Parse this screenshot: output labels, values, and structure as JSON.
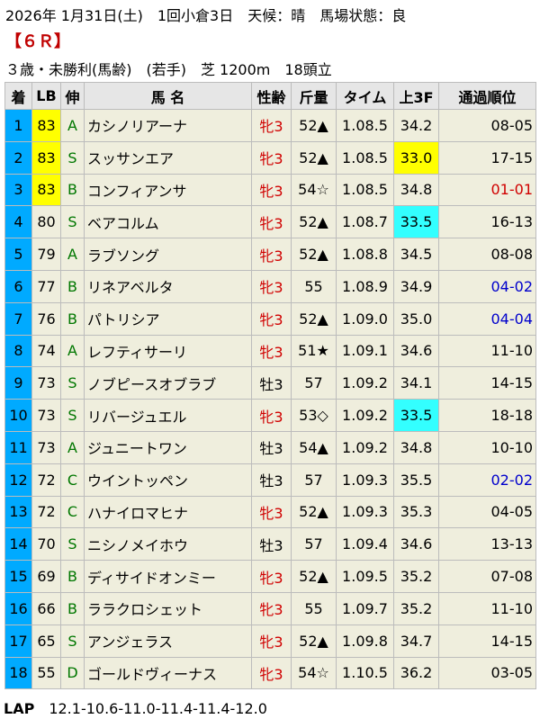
{
  "header": {
    "date_line": "2026年 1月31日(土)　1回小倉3日　天候：晴　馬場状態：良",
    "race_no": "【６Ｒ】",
    "conditions": "３歳・未勝利(馬齢)　(若手)　芝 1200m　18頭立"
  },
  "columns": [
    "着",
    "LB",
    "伸",
    "馬 名",
    "性齢",
    "斤量",
    "タイム",
    "上3F",
    "通過順位"
  ],
  "colors": {
    "gate_1": "#ffffff",
    "gate_2": "#000000",
    "gate_3": "#ff0000",
    "gate_4": "#0000ff",
    "gate_5": "#ffff00",
    "gate_6": "#008000",
    "gate_7": "#ff8c00",
    "gate_8": "#ff69b4",
    "rank_cell": "#00aaff",
    "header_bg": "#e6e6e6",
    "row_bg": "#efeedd"
  },
  "rows": [
    {
      "rank": "1",
      "lb": "83",
      "lb_hl": true,
      "grade": "A",
      "name": "カシノリアーナ",
      "sex": "牝3",
      "sex_red": true,
      "weight": "52▲",
      "time": "1.08.5",
      "last3f": "34.2",
      "f3_hl": "",
      "pos": "08-05",
      "pos_color": ""
    },
    {
      "rank": "2",
      "lb": "83",
      "lb_hl": true,
      "grade": "S",
      "name": "スッサンエア",
      "sex": "牝3",
      "sex_red": true,
      "weight": "52▲",
      "time": "1.08.5",
      "last3f": "33.0",
      "f3_hl": "ylw",
      "pos": "17-15",
      "pos_color": ""
    },
    {
      "rank": "3",
      "lb": "83",
      "lb_hl": true,
      "grade": "B",
      "name": "コンフィアンサ",
      "sex": "牝3",
      "sex_red": true,
      "weight": "54☆",
      "time": "1.08.5",
      "last3f": "34.8",
      "f3_hl": "",
      "pos": "01-01",
      "pos_color": "red"
    },
    {
      "rank": "4",
      "lb": "80",
      "lb_hl": false,
      "grade": "S",
      "name": "ベアコルム",
      "sex": "牝3",
      "sex_red": true,
      "weight": "52▲",
      "time": "1.08.7",
      "last3f": "33.5",
      "f3_hl": "cyn",
      "pos": "16-13",
      "pos_color": ""
    },
    {
      "rank": "5",
      "lb": "79",
      "lb_hl": false,
      "grade": "A",
      "name": "ラブソング",
      "sex": "牝3",
      "sex_red": true,
      "weight": "52▲",
      "time": "1.08.8",
      "last3f": "34.5",
      "f3_hl": "",
      "pos": "08-08",
      "pos_color": ""
    },
    {
      "rank": "6",
      "lb": "77",
      "lb_hl": false,
      "grade": "B",
      "name": "リネアベルタ",
      "sex": "牝3",
      "sex_red": true,
      "weight": "55",
      "time": "1.08.9",
      "last3f": "34.9",
      "f3_hl": "",
      "pos": "04-02",
      "pos_color": "blue"
    },
    {
      "rank": "7",
      "lb": "76",
      "lb_hl": false,
      "grade": "B",
      "name": "パトリシア",
      "sex": "牝3",
      "sex_red": true,
      "weight": "52▲",
      "time": "1.09.0",
      "last3f": "35.0",
      "f3_hl": "",
      "pos": "04-04",
      "pos_color": "blue"
    },
    {
      "rank": "8",
      "lb": "74",
      "lb_hl": false,
      "grade": "A",
      "name": "レフティサーリ",
      "sex": "牝3",
      "sex_red": true,
      "weight": "51★",
      "time": "1.09.1",
      "last3f": "34.6",
      "f3_hl": "",
      "pos": "11-10",
      "pos_color": ""
    },
    {
      "rank": "9",
      "lb": "73",
      "lb_hl": false,
      "grade": "S",
      "name": "ノブピースオブラブ",
      "sex": "牡3",
      "sex_red": false,
      "weight": "57",
      "time": "1.09.2",
      "last3f": "34.1",
      "f3_hl": "",
      "pos": "14-15",
      "pos_color": ""
    },
    {
      "rank": "10",
      "lb": "73",
      "lb_hl": false,
      "grade": "S",
      "name": "リバージュエル",
      "sex": "牝3",
      "sex_red": true,
      "weight": "53◇",
      "time": "1.09.2",
      "last3f": "33.5",
      "f3_hl": "cyn",
      "pos": "18-18",
      "pos_color": ""
    },
    {
      "rank": "11",
      "lb": "73",
      "lb_hl": false,
      "grade": "A",
      "name": "ジュニートワン",
      "sex": "牡3",
      "sex_red": false,
      "weight": "54▲",
      "time": "1.09.2",
      "last3f": "34.8",
      "f3_hl": "",
      "pos": "10-10",
      "pos_color": ""
    },
    {
      "rank": "12",
      "lb": "72",
      "lb_hl": false,
      "grade": "C",
      "name": "ウイントッペン",
      "sex": "牡3",
      "sex_red": false,
      "weight": "57",
      "time": "1.09.3",
      "last3f": "35.5",
      "f3_hl": "",
      "pos": "02-02",
      "pos_color": "blue"
    },
    {
      "rank": "13",
      "lb": "72",
      "lb_hl": false,
      "grade": "C",
      "name": "ハナイロマヒナ",
      "sex": "牝3",
      "sex_red": true,
      "weight": "52▲",
      "time": "1.09.3",
      "last3f": "35.3",
      "f3_hl": "",
      "pos": "04-05",
      "pos_color": ""
    },
    {
      "rank": "14",
      "lb": "70",
      "lb_hl": false,
      "grade": "S",
      "name": "ニシノメイホウ",
      "sex": "牡3",
      "sex_red": false,
      "weight": "57",
      "time": "1.09.4",
      "last3f": "34.6",
      "f3_hl": "",
      "pos": "13-13",
      "pos_color": ""
    },
    {
      "rank": "15",
      "lb": "69",
      "lb_hl": false,
      "grade": "B",
      "name": "ディサイドオンミー",
      "sex": "牝3",
      "sex_red": true,
      "weight": "52▲",
      "time": "1.09.5",
      "last3f": "35.2",
      "f3_hl": "",
      "pos": "07-08",
      "pos_color": ""
    },
    {
      "rank": "16",
      "lb": "66",
      "lb_hl": false,
      "grade": "B",
      "name": "ララクロシェット",
      "sex": "牝3",
      "sex_red": true,
      "weight": "55",
      "time": "1.09.7",
      "last3f": "35.2",
      "f3_hl": "",
      "pos": "11-10",
      "pos_color": ""
    },
    {
      "rank": "17",
      "lb": "65",
      "lb_hl": false,
      "grade": "S",
      "name": "アンジェラス",
      "sex": "牝3",
      "sex_red": true,
      "weight": "52▲",
      "time": "1.09.8",
      "last3f": "34.7",
      "f3_hl": "",
      "pos": "14-15",
      "pos_color": ""
    },
    {
      "rank": "18",
      "lb": "55",
      "lb_hl": false,
      "grade": "D",
      "name": "ゴールドヴィーナス",
      "sex": "牝3",
      "sex_red": true,
      "weight": "54☆",
      "time": "1.10.5",
      "last3f": "36.2",
      "f3_hl": "",
      "pos": "03-05",
      "pos_color": ""
    }
  ],
  "lap": {
    "label": "LAP",
    "value": "12.1-10.6-11.0-11.4-11.4-12.0"
  }
}
